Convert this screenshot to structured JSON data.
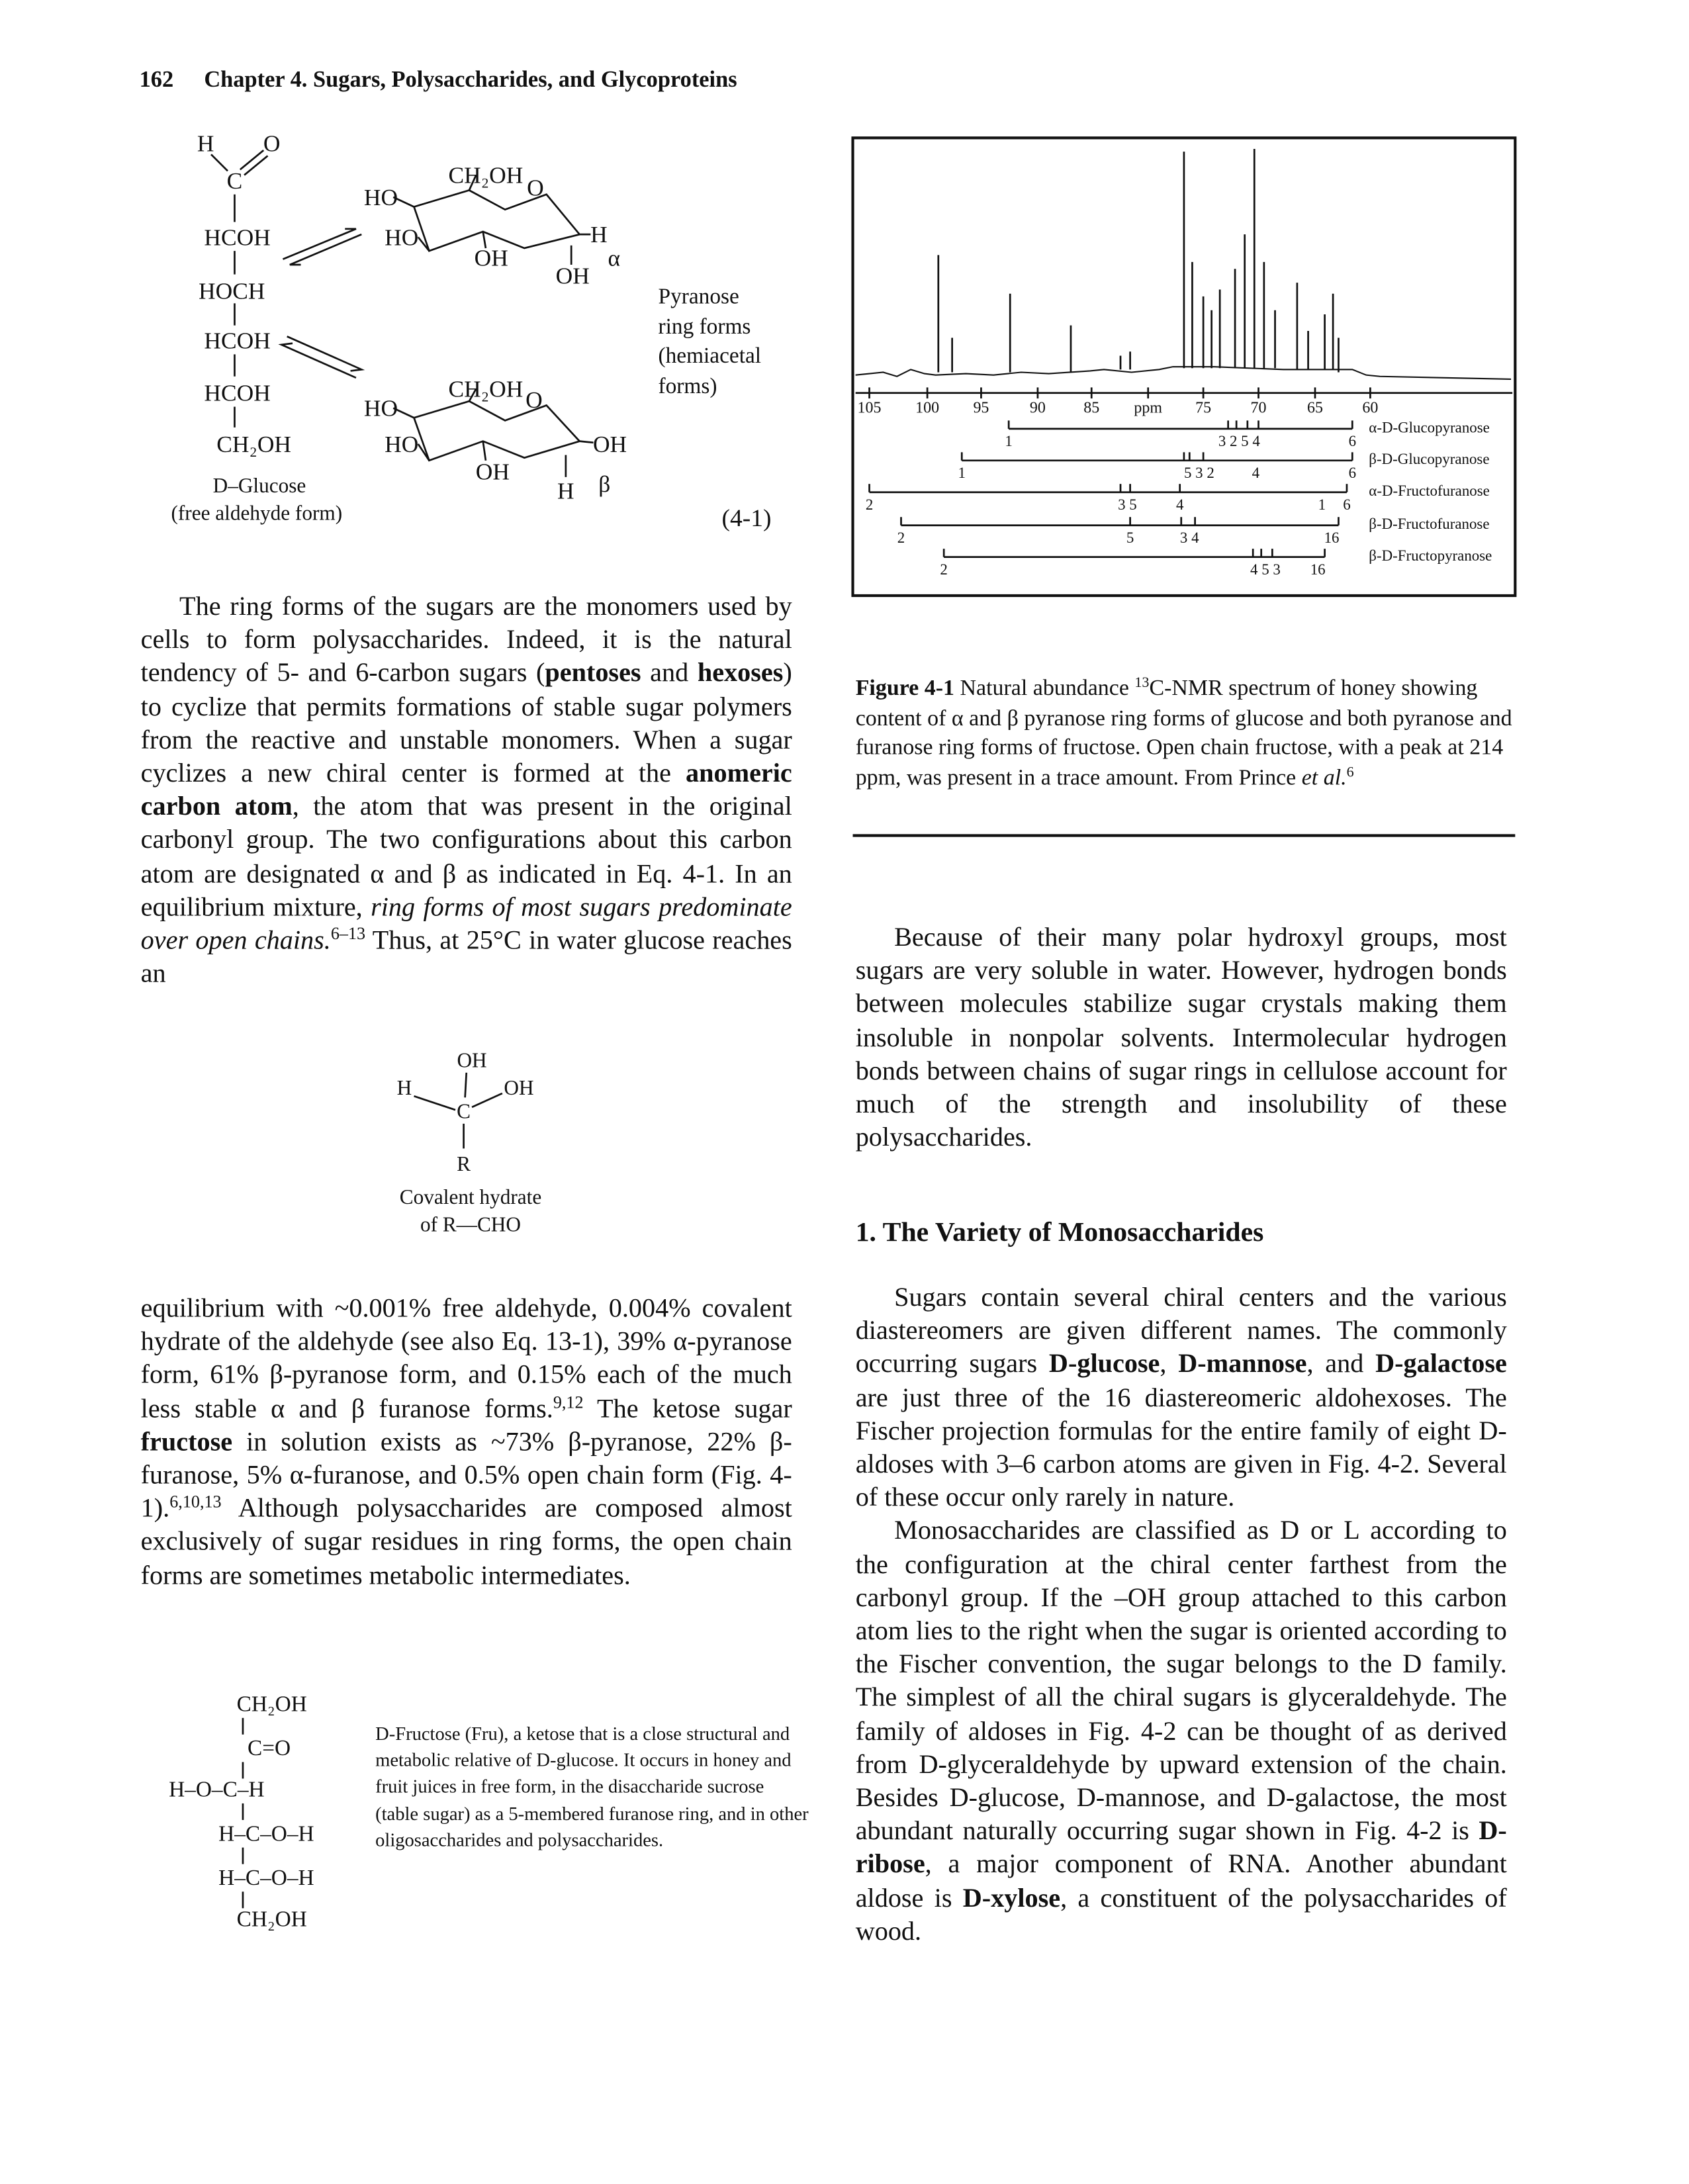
{
  "header": {
    "page_number": "162",
    "title": "Chapter 4. Sugars, Polysaccharides, and Glycoproteins"
  },
  "equation_4_1": {
    "open_chain": [
      "H",
      "O",
      "C",
      "HCOH",
      "HOCH",
      "HCOH",
      "HCOH",
      "CH₂OH"
    ],
    "open_chain_caption": [
      "D–Glucose",
      "(free aldehyde form)"
    ],
    "alpha_ring": [
      "CH₂OH",
      "O",
      "HO",
      "HO",
      "H",
      "OH",
      "OH",
      "α"
    ],
    "beta_ring": [
      "CH₂OH",
      "O",
      "HO",
      "HO",
      "OH",
      "OH",
      "H",
      "β"
    ],
    "ring_label": [
      "Pyranose",
      "ring forms",
      "(hemiacetal",
      "forms)"
    ],
    "number": "(4-1)"
  },
  "figure_4_1": {
    "axis_ticks": [
      "105",
      "100",
      "95",
      "90",
      "85",
      "ppm",
      "75",
      "70",
      "65",
      "60"
    ],
    "assignments": [
      {
        "name": "α-D-Glucopyranose",
        "numbers": [
          "1",
          "3 2 5 4",
          "6"
        ]
      },
      {
        "name": "β-D-Glucopyranose",
        "numbers": [
          "1",
          "5 3 2",
          "4",
          "6"
        ]
      },
      {
        "name": "α-D-Fructofuranose",
        "numbers": [
          "2",
          "3 5",
          "4",
          "1",
          "6"
        ]
      },
      {
        "name": "β-D-Fructofuranose",
        "numbers": [
          "2",
          "5",
          "3 4",
          "16"
        ]
      },
      {
        "name": "β-D-Fructopyranose",
        "numbers": [
          "2",
          "4 5 3",
          "16"
        ]
      }
    ],
    "caption": [
      "Figure 4-1",
      " Natural abundance ",
      "13",
      "C-NMR spectrum of honey showing content of α and β pyranose ring forms of glucose and both pyranose and furanose ring forms of fructose. Open chain fructose, with a peak at 214 ppm, was present in a trace amount. From Prince ",
      "et al.",
      "6"
    ]
  },
  "left_column": {
    "paragraph_1": [
      "The ring forms of the sugars are the monomers used by cells to form polysaccharides. Indeed, it is the natural tendency of 5- and 6-carbon sugars (",
      "pentoses",
      " and ",
      "hexoses",
      ") to cyclize that permits formations of stable sugar polymers from the reactive and unstable monomers. When a sugar cyclizes a new chiral center is formed at the ",
      "anomeric carbon atom",
      ", the atom that was present in the original carbonyl group. The two configurations about this carbon atom are designated α and β as indicated in Eq. 4-1. In an equilibrium mixture, ",
      "ring forms of most sugars predominate over open chains.",
      "6–13",
      " Thus, at 25°C in water glucose reaches an"
    ],
    "paragraph_2": [
      "equilibrium with ~0.001% free aldehyde, 0.004% covalent hydrate of the aldehyde (see also Eq. 13-1), 39% α-pyranose form, 61% β-pyranose form, and 0.15% each of the much less stable α and β furanose forms.",
      "9,12",
      " The ketose sugar ",
      "fructose",
      " in solution exists as ~73% β-pyranose, 22% β-furanose, 5% α-furanose, and 0.5% open chain form (Fig. 4-1).",
      "6,10,13",
      " Although polysaccharides are composed almost exclusively of sugar residues in ring forms, the open chain forms are sometimes metabolic intermediates."
    ]
  },
  "covalent_hydrate": {
    "labels": [
      "OH",
      "H",
      "OH",
      "C",
      "R"
    ],
    "caption": [
      "Covalent hydrate",
      "of R—CHO"
    ]
  },
  "fructose": {
    "labels": [
      "CH₂OH",
      "C=O",
      "H–O–C–H",
      "H–C–O–H",
      "H–C–O–H",
      "CH₂OH"
    ],
    "caption": "D-Fructose (Fru), a ketose that is a close structural and metabolic relative of D-glucose. It occurs in honey and fruit juices in free form, in the disaccharide sucrose (table sugar) as a 5-membered furanose ring, and in other oligosaccharides and polysaccharides."
  },
  "right_column": {
    "paragraph_1": "Because of their many polar hydroxyl groups, most sugars are very soluble in water. However, hydrogen bonds between molecules stabilize sugar crystals making them insoluble in nonpolar solvents. Intermolecular hydrogen bonds between chains of sugar rings in cellulose account for much of the strength and insolubility of these polysaccharides.",
    "heading": "1. The Variety of Monosaccharides",
    "paragraph_2": [
      "Sugars contain several chiral centers and the various diastereomers are given different names. The commonly occurring sugars ",
      "D-glucose",
      ", ",
      "D-mannose",
      ", and ",
      "D-galactose",
      " are just three of the 16 diastereomeric aldohexoses. The Fischer projection formulas for the entire family of eight D-aldoses with 3–6 carbon atoms are given in Fig. 4-2. Several of these occur only rarely in nature."
    ],
    "paragraph_3": [
      "Monosaccharides are classified as D or L according to the configuration at the chiral center farthest from the carbonyl group. If the –OH group attached to this carbon atom lies to the right when the sugar is oriented according to the Fischer convention, the sugar belongs to the D family. The simplest of all the chiral sugars is glyceraldehyde. The family of aldoses in Fig. 4-2 can be thought of as derived from D-glyceraldehyde by upward extension of the chain. Besides D-glucose, D-mannose, and D-galactose, the most abundant naturally occurring sugar shown in Fig. 4-2 is ",
      "D-ribose",
      ", a major component of RNA. Another abundant aldose is ",
      "D-xylose",
      ", a constituent of the polysaccharides of wood."
    ]
  }
}
